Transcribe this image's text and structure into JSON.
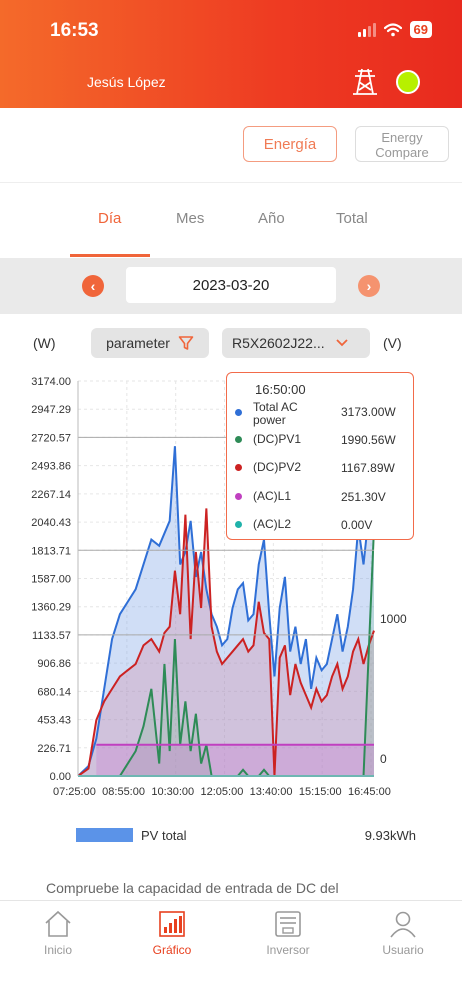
{
  "status_bar": {
    "time": "16:53",
    "battery": "69"
  },
  "header": {
    "user_name": "Jesús López"
  },
  "buttons": {
    "energia": "Energía",
    "energy_compare": "Energy Compare"
  },
  "tabs": [
    {
      "label": "Día",
      "active": true
    },
    {
      "label": "Mes",
      "active": false
    },
    {
      "label": "Año",
      "active": false
    },
    {
      "label": "Total",
      "active": false
    }
  ],
  "date_selector": {
    "date": "2023-03-20",
    "prev": "‹",
    "next": "›"
  },
  "param_row": {
    "unit_left": "(W)",
    "unit_right": "(V)",
    "parameter_label": "parameter",
    "device_label": "R5X2602J22..."
  },
  "tooltip": {
    "time": "16:50:00",
    "rows": [
      {
        "name": "Total AC power",
        "value": "3173.00W",
        "color": "#2f6fd6"
      },
      {
        "name": "(DC)PV1",
        "value": "1990.56W",
        "color": "#2e8b57"
      },
      {
        "name": "(DC)PV2",
        "value": "1167.89W",
        "color": "#cc2222"
      },
      {
        "name": "(AC)L1",
        "value": "251.30V",
        "color": "#c040c0"
      },
      {
        "name": "(AC)L2",
        "value": "0.00V",
        "color": "#20b2aa"
      }
    ]
  },
  "chart_data": {
    "type": "area",
    "y_ticks": [
      "3174.00",
      "2947.29",
      "2720.57",
      "2493.86",
      "2267.14",
      "2040.43",
      "1813.71",
      "1587.00",
      "1360.29",
      "1133.57",
      "906.86",
      "680.14",
      "453.43",
      "226.71",
      "0.00"
    ],
    "y_right_ticks": [
      {
        "label": "1000",
        "value": 1000
      },
      {
        "label": "0",
        "value": 0
      }
    ],
    "x_ticks": [
      "07:25:00",
      "08:55:00",
      "10:30:00",
      "12:05:00",
      "13:40:00",
      "15:15:00",
      "16:45:00"
    ],
    "ylim": [
      0,
      3174
    ],
    "y_right_lim": [
      -120,
      2700
    ],
    "xlim": [
      "07:25",
      "16:50"
    ],
    "series": [
      {
        "key": "total",
        "color": "#2f6fd6",
        "fill": "rgba(120,160,230,0.35)",
        "x": [
          "07:25",
          "07:45",
          "08:00",
          "08:15",
          "08:30",
          "08:45",
          "09:00",
          "09:15",
          "09:30",
          "09:45",
          "10:00",
          "10:10",
          "10:20",
          "10:30",
          "10:40",
          "10:50",
          "11:00",
          "11:10",
          "11:20",
          "11:30",
          "11:40",
          "11:50",
          "12:00",
          "12:10",
          "12:20",
          "12:30",
          "12:40",
          "12:50",
          "13:00",
          "13:10",
          "13:20",
          "13:30",
          "13:40",
          "13:50",
          "14:00",
          "14:10",
          "14:20",
          "14:30",
          "14:40",
          "14:50",
          "15:00",
          "15:10",
          "15:20",
          "15:30",
          "15:40",
          "15:50",
          "16:00",
          "16:10",
          "16:20",
          "16:30",
          "16:40",
          "16:50"
        ],
        "values": [
          0,
          80,
          300,
          700,
          1100,
          1300,
          1400,
          1500,
          1700,
          1900,
          1850,
          1950,
          2050,
          2650,
          1700,
          1800,
          2050,
          1600,
          1800,
          1500,
          1300,
          1200,
          1050,
          1100,
          1350,
          1500,
          1550,
          1250,
          1300,
          1700,
          1900,
          1300,
          800,
          1350,
          1600,
          1000,
          1200,
          900,
          1100,
          700,
          950,
          850,
          900,
          1100,
          1300,
          1000,
          1200,
          1500,
          2000,
          1700,
          2100,
          3173
        ]
      },
      {
        "key": "pv2",
        "color": "#cc2222",
        "fill": "rgba(210,130,160,0.30)",
        "x": [
          "07:25",
          "07:45",
          "08:00",
          "08:15",
          "08:30",
          "08:45",
          "09:00",
          "09:15",
          "09:30",
          "09:45",
          "10:00",
          "10:10",
          "10:20",
          "10:30",
          "10:40",
          "10:50",
          "11:00",
          "11:10",
          "11:20",
          "11:30",
          "11:40",
          "11:50",
          "12:00",
          "12:10",
          "12:20",
          "12:30",
          "12:40",
          "12:50",
          "13:00",
          "13:10",
          "13:20",
          "13:30",
          "13:40",
          "13:50",
          "14:00",
          "14:10",
          "14:20",
          "14:30",
          "14:40",
          "14:50",
          "15:00",
          "15:10",
          "15:20",
          "15:30",
          "15:40",
          "15:50",
          "16:00",
          "16:10",
          "16:20",
          "16:30",
          "16:40",
          "16:50"
        ],
        "values": [
          0,
          60,
          450,
          600,
          700,
          800,
          850,
          900,
          1050,
          1100,
          1000,
          1150,
          1200,
          1650,
          1300,
          2100,
          1100,
          1800,
          1350,
          2150,
          1200,
          1000,
          900,
          950,
          1000,
          1050,
          1100,
          1000,
          1050,
          1400,
          1150,
          1100,
          0,
          950,
          1050,
          650,
          900,
          750,
          650,
          550,
          700,
          600,
          650,
          800,
          900,
          700,
          800,
          1000,
          1100,
          900,
          1050,
          1168
        ]
      },
      {
        "key": "pv1",
        "color": "#2e8b57",
        "fill": "rgba(90,180,110,0.18)",
        "x": [
          "07:25",
          "08:45",
          "09:00",
          "09:15",
          "09:30",
          "09:45",
          "10:00",
          "10:10",
          "10:20",
          "10:30",
          "10:40",
          "10:50",
          "11:00",
          "11:10",
          "11:20",
          "11:30",
          "11:40",
          "11:50",
          "12:00",
          "12:10",
          "12:20",
          "12:30",
          "12:40",
          "12:50",
          "13:00",
          "13:10",
          "13:20",
          "13:30",
          "13:40",
          "13:50",
          "14:00",
          "14:10",
          "14:20",
          "14:30",
          "14:40",
          "14:50",
          "15:00",
          "15:10",
          "15:20",
          "15:30",
          "15:40",
          "15:50",
          "16:00",
          "16:10",
          "16:20",
          "16:30",
          "16:40",
          "16:50"
        ],
        "values": [
          0,
          0,
          100,
          200,
          400,
          700,
          100,
          900,
          200,
          1100,
          250,
          600,
          200,
          500,
          100,
          250,
          0,
          0,
          0,
          0,
          0,
          0,
          50,
          0,
          0,
          0,
          50,
          0,
          0,
          0,
          0,
          0,
          0,
          0,
          0,
          0,
          0,
          0,
          0,
          0,
          0,
          0,
          0,
          0,
          0,
          0,
          1000,
          1991
        ]
      },
      {
        "key": "l1",
        "color": "#c040c0",
        "fill": "rgba(200,120,210,0.30)",
        "x": [
          "08:00",
          "08:10",
          "12:00",
          "13:40",
          "15:00",
          "16:50"
        ],
        "values": [
          251,
          251,
          251,
          251,
          251,
          251
        ]
      },
      {
        "key": "l2",
        "color": "#20b2aa",
        "fill": "none",
        "x": [
          "07:25",
          "16:50"
        ],
        "values": [
          0,
          0
        ]
      }
    ]
  },
  "legend": {
    "label": "PV total",
    "value": "9.93kWh",
    "color": "#5b93e8"
  },
  "footer_text": "Compruebe la capacidad de entrada de DC del",
  "bottom_nav": [
    {
      "key": "inicio",
      "label": "Inicio",
      "active": false
    },
    {
      "key": "grafico",
      "label": "Gráfico",
      "active": true
    },
    {
      "key": "inversor",
      "label": "Inversor",
      "active": false
    },
    {
      "key": "usuario",
      "label": "Usuario",
      "active": false
    }
  ]
}
